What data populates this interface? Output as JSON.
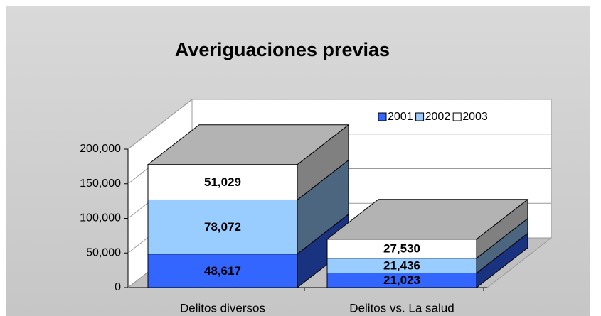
{
  "chart_data": {
    "type": "bar3d_stacked",
    "title": "Averiguaciones previas",
    "categories": [
      "Delitos diversos",
      "Delitos vs. La salud"
    ],
    "series": [
      {
        "name": "2001",
        "color": "#3366ff",
        "values": [
          48617,
          21023
        ],
        "value_labels": [
          "48,617",
          "21,023"
        ]
      },
      {
        "name": "2002",
        "color": "#99ccff",
        "values": [
          78072,
          21436
        ],
        "value_labels": [
          "78,072",
          "21,436"
        ]
      },
      {
        "name": "2003",
        "color": "#ffffff",
        "values": [
          51029,
          27530
        ],
        "value_labels": [
          "51,029",
          "27,530"
        ]
      }
    ],
    "ylim": [
      0,
      200000
    ],
    "yticks": [
      0,
      {
        "value": 50000,
        "label": "50,000"
      },
      {
        "value": 100000,
        "label": "100,000"
      },
      {
        "value": 150000,
        "label": "150,000"
      },
      {
        "value": 200000,
        "label": "200,000"
      }
    ],
    "grid": true,
    "legend": "top-right"
  }
}
